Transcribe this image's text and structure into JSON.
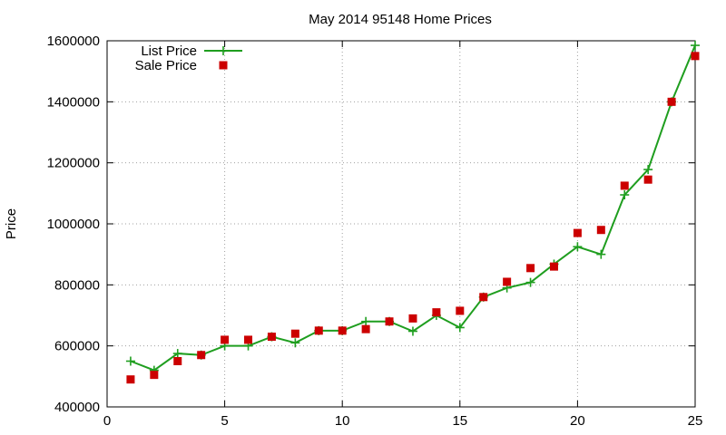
{
  "chart_data": {
    "type": "line",
    "title": "May 2014 95148 Home Prices",
    "xlabel": "",
    "ylabel": "Price",
    "xlim": [
      0,
      25
    ],
    "ylim": [
      400000,
      1600000
    ],
    "xticks": [
      0,
      5,
      10,
      15,
      20,
      25
    ],
    "yticks": [
      400000,
      600000,
      800000,
      1000000,
      1200000,
      1400000,
      1600000
    ],
    "grid": true,
    "legend_placement": "top-left",
    "x": [
      1,
      2,
      3,
      4,
      5,
      6,
      7,
      8,
      9,
      10,
      11,
      12,
      13,
      14,
      15,
      16,
      17,
      18,
      19,
      20,
      21,
      22,
      23,
      24,
      25
    ],
    "series": [
      {
        "name": "List Price",
        "style": "line-with-plus-markers",
        "color": "#1f9e1f",
        "values": [
          550000,
          520000,
          575000,
          570000,
          600000,
          600000,
          630000,
          610000,
          650000,
          650000,
          680000,
          680000,
          648000,
          700000,
          660000,
          760000,
          790000,
          808000,
          868000,
          925000,
          900000,
          1095000,
          1178000,
          1400000,
          1585000
        ]
      },
      {
        "name": "Sale Price",
        "style": "square-markers",
        "color": "#cc0000",
        "values": [
          490000,
          505000,
          550000,
          570000,
          620000,
          620000,
          630000,
          640000,
          650000,
          650000,
          655000,
          680000,
          690000,
          710000,
          715000,
          760000,
          810000,
          855000,
          860000,
          970000,
          980000,
          1125000,
          1145000,
          1400000,
          1550000
        ]
      }
    ]
  }
}
